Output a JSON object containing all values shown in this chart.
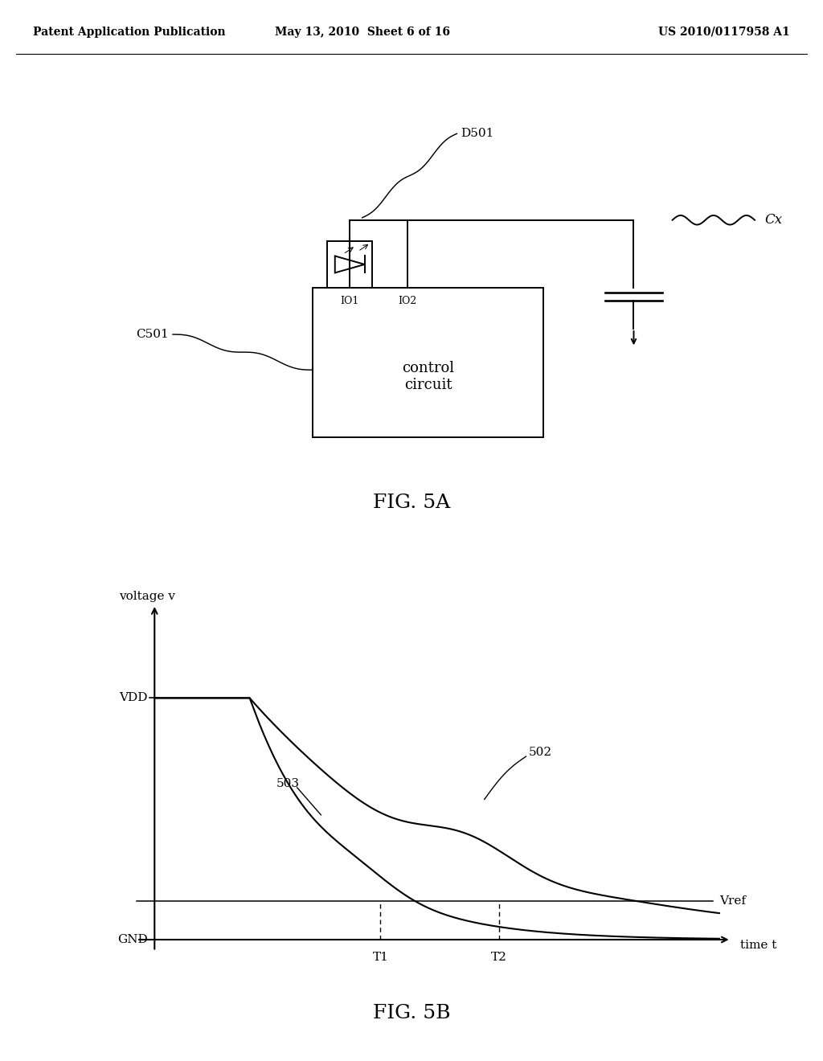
{
  "bg_color": "#ffffff",
  "header_left": "Patent Application Publication",
  "header_mid": "May 13, 2010  Sheet 6 of 16",
  "header_right": "US 2010/0117958 A1",
  "fig5a_label": "FIG. 5A",
  "fig5b_label": "FIG. 5B",
  "graph": {
    "ylabel": "voltage v",
    "xlabel": "time t",
    "vdd_label": "VDD",
    "gnd_label": "GND",
    "vref_label": "Vref",
    "t1_label": "T1",
    "t2_label": "T2",
    "label_502": "502",
    "label_503": "503"
  }
}
